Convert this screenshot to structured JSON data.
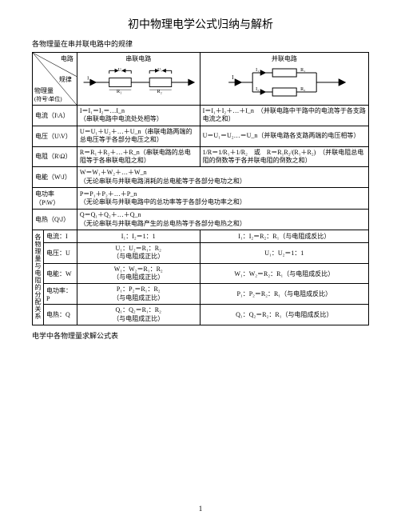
{
  "title": "初中物理电学公式归纳与解析",
  "subtitle": "各物理量在串并联电路中的规律",
  "header": {
    "circuit": "电路",
    "rule": "规律",
    "quantity": "物理量",
    "unit": "(符号\\单位)",
    "series": "串联电路",
    "parallel": "并联电路"
  },
  "rows": [
    {
      "label": "电流（I\\A）",
      "series": "I＝I₁＝I₂＝…I_n\n（串联电路中电流处处相等）",
      "parallel": "I＝I₁＋I₂＋…＋I_n　（并联电路中干路中的电流等于各支路电流之和）"
    },
    {
      "label": "电压（U\\V）",
      "series": "U＝U₁＋U₂＋…＋U_n（串联电路两端的总电压等于各部分电压之和）",
      "parallel": "U＝U₁＝U₂…＝U_n（并联电路各支路两端的电压相等）"
    },
    {
      "label": "电阻（R\\Ω）",
      "series": "R＝R₁＋R₂＋…＋R_n（串联电路的总电阻等于各串联电阻之和）",
      "parallel": "1/R＝1/R₁＋1/R₂　或　R＝R₁R₂/(R₁＋R₂)　（并联电阻总电阻的倒数等于各并联电阻的倒数之和）"
    },
    {
      "label": "电能（W\\J）",
      "series_span": "W＝W₁＋W₂＋…＋W_n\n（无论串联与并联电路消耗的总电能等于各部分电功之和）"
    },
    {
      "label": "电功率（P\\W）",
      "series_span": "P＝P₁＋P₂＋…＋P_n\n（无论串联与并联电路中的总功率等于各部分电功率之和）"
    },
    {
      "label": "电热（Q\\J）",
      "series_span": "Q＝Q₁＋Q₂＋…＋Q_n\n（无论串联与并联电路产生的总电热等于各部分电热之和）"
    }
  ],
  "sub_table": {
    "group_label": "各物理量与电阻的分配关系",
    "rows": [
      {
        "label": "电流：I",
        "series": "I₁：I₂＝1：1",
        "parallel": "I₁：I₂＝R₂：R₁（与电阻成反比）"
      },
      {
        "label": "电压：U",
        "series": "U₁：U₂＝R₁：R₂\n（与电阻成正比）",
        "parallel": "U₁：U₂＝1：1"
      },
      {
        "label": "电能：W",
        "series": "W₁：W₂＝R₁：R₂\n（与电阻成正比）",
        "parallel": "W₁：W₂＝R₂：R₁（与电阻成反比）"
      },
      {
        "label": "电功率：P",
        "series": "P₁：P₂＝R₁：R₂\n（与电阻成正比）",
        "parallel": "P₁：P₂＝R₂：R₁（与电阻成反比）"
      },
      {
        "label": "电热：Q",
        "series": "Q₁：Q₂＝R₁：R₂\n（与电阻成正比）",
        "parallel": "Q₁：Q₂＝R₂：R₁（与电阻成反比）"
      }
    ]
  },
  "footer": "电学中各物理量求解公式表",
  "page_number": "1",
  "colors": {
    "text": "#000000",
    "border": "#000000",
    "background": "#ffffff"
  }
}
